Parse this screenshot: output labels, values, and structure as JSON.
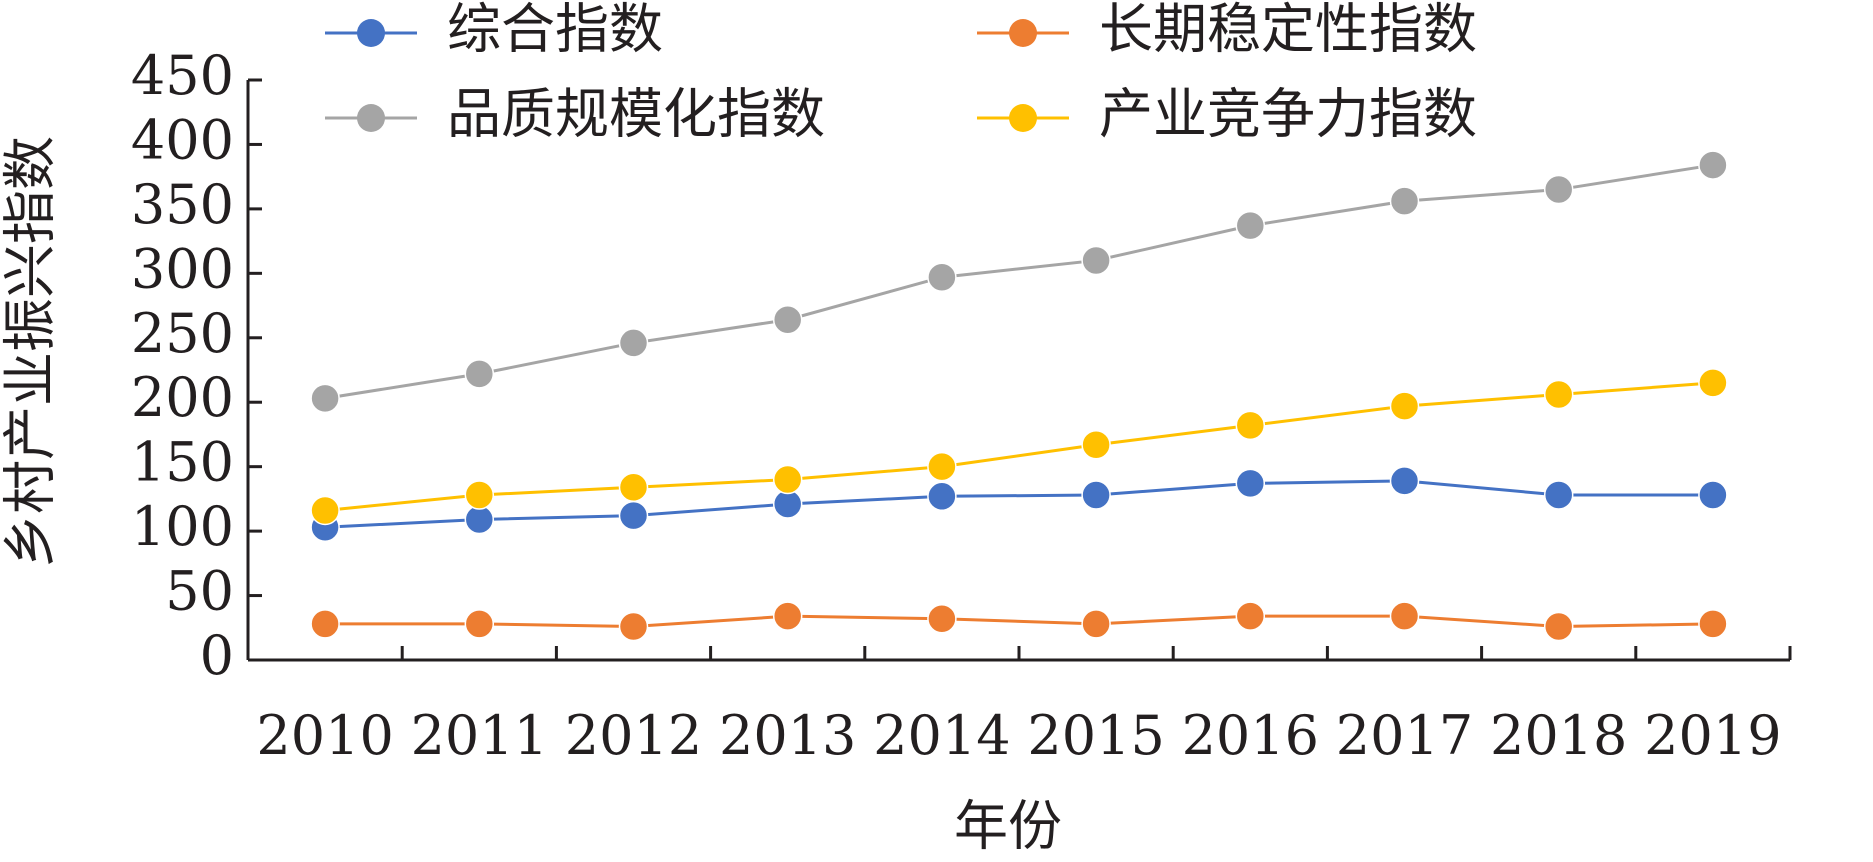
{
  "chart_data": {
    "type": "line",
    "title": "",
    "xlabel": "年份",
    "ylabel": "乡村产业振兴指数",
    "ylim": [
      0,
      450
    ],
    "yticks": [
      0,
      50,
      100,
      150,
      200,
      250,
      300,
      350,
      400,
      450
    ],
    "categories": [
      "2010",
      "2011",
      "2012",
      "2013",
      "2014",
      "2015",
      "2016",
      "2017",
      "2018",
      "2019"
    ],
    "grid": false,
    "legend_position": "top",
    "series": [
      {
        "name": "综合指数",
        "color": "#4472c4",
        "values": [
          103,
          109,
          112,
          121,
          127,
          128,
          137,
          139,
          128,
          128
        ]
      },
      {
        "name": "长期稳定性指数",
        "color": "#ed7d31",
        "values": [
          28,
          28,
          26,
          34,
          32,
          28,
          34,
          34,
          26,
          28
        ]
      },
      {
        "name": "品质规模化指数",
        "color": "#a5a5a5",
        "values": [
          203,
          222,
          246,
          264,
          297,
          310,
          337,
          356,
          365,
          384
        ]
      },
      {
        "name": "产业竞争力指数",
        "color": "#ffc000",
        "values": [
          116,
          128,
          134,
          140,
          150,
          167,
          182,
          197,
          206,
          215
        ]
      }
    ]
  }
}
